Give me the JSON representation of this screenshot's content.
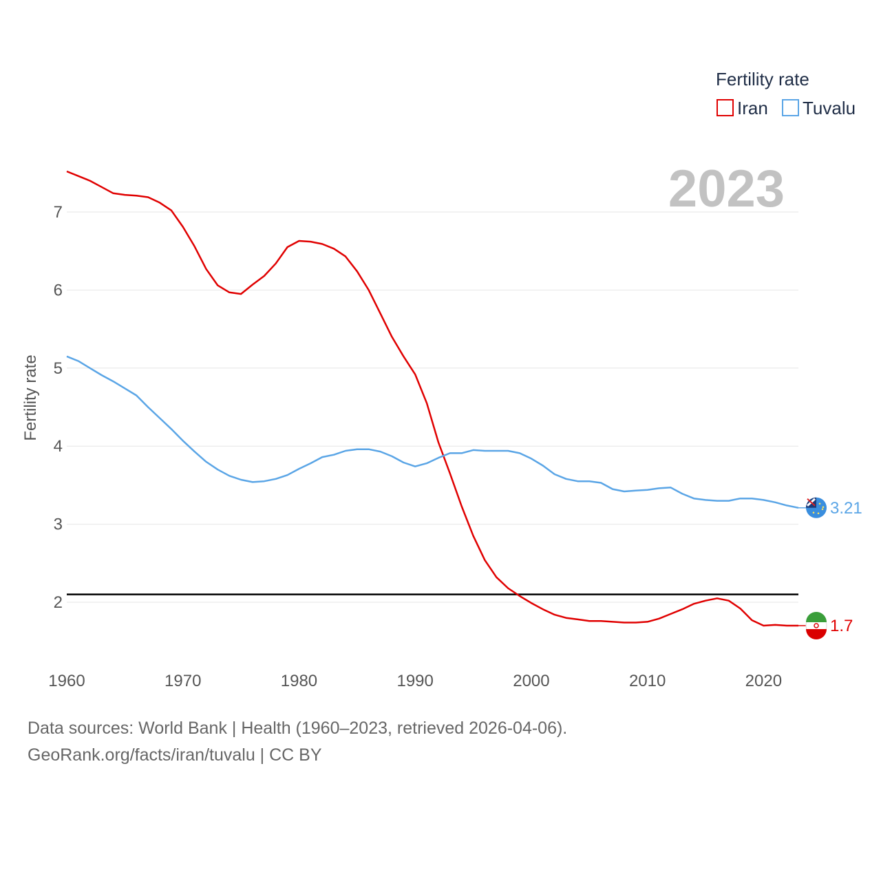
{
  "chart_data": {
    "type": "line",
    "ylabel": "Fertility rate",
    "xlabel": "",
    "xlim": [
      1960,
      2023
    ],
    "ylim": [
      1.3,
      7.5
    ],
    "yticks": [
      "2",
      "3",
      "4",
      "5",
      "6",
      "7"
    ],
    "xticks": [
      "1960",
      "1970",
      "1980",
      "1990",
      "2000",
      "2010",
      "2020"
    ],
    "year_label": "2023",
    "legend": {
      "title": "Fertility rate",
      "position": "top-right"
    },
    "reference_line": {
      "y": 2.1,
      "color": "#000000"
    },
    "x": [
      1960,
      1961,
      1962,
      1963,
      1964,
      1965,
      1966,
      1967,
      1968,
      1969,
      1970,
      1971,
      1972,
      1973,
      1974,
      1975,
      1976,
      1977,
      1978,
      1979,
      1980,
      1981,
      1982,
      1983,
      1984,
      1985,
      1986,
      1987,
      1988,
      1989,
      1990,
      1991,
      1992,
      1993,
      1994,
      1995,
      1996,
      1997,
      1998,
      1999,
      2000,
      2001,
      2002,
      2003,
      2004,
      2005,
      2006,
      2007,
      2008,
      2009,
      2010,
      2011,
      2012,
      2013,
      2014,
      2015,
      2016,
      2017,
      2018,
      2019,
      2020,
      2021,
      2022,
      2023
    ],
    "series": [
      {
        "name": "Iran",
        "color": "#e00000",
        "end_label": "1.7",
        "values": [
          7.52,
          7.46,
          7.4,
          7.32,
          7.24,
          7.22,
          7.21,
          7.19,
          7.12,
          7.02,
          6.81,
          6.56,
          6.27,
          6.06,
          5.97,
          5.95,
          6.07,
          6.18,
          6.34,
          6.55,
          6.63,
          6.62,
          6.59,
          6.53,
          6.43,
          6.24,
          6.0,
          5.7,
          5.4,
          5.15,
          4.92,
          4.55,
          4.05,
          3.65,
          3.23,
          2.85,
          2.54,
          2.32,
          2.18,
          2.08,
          1.99,
          1.91,
          1.84,
          1.8,
          1.78,
          1.76,
          1.76,
          1.75,
          1.74,
          1.74,
          1.75,
          1.79,
          1.85,
          1.91,
          1.98,
          2.02,
          2.05,
          2.02,
          1.92,
          1.77,
          1.7,
          1.71,
          1.7,
          1.7
        ]
      },
      {
        "name": "Tuvalu",
        "color": "#5aa5e6",
        "end_label": "3.21",
        "values": [
          5.15,
          5.09,
          5.0,
          4.91,
          4.83,
          4.74,
          4.65,
          4.5,
          4.36,
          4.22,
          4.07,
          3.93,
          3.8,
          3.7,
          3.62,
          3.57,
          3.54,
          3.55,
          3.58,
          3.63,
          3.71,
          3.78,
          3.86,
          3.89,
          3.94,
          3.96,
          3.96,
          3.93,
          3.87,
          3.79,
          3.74,
          3.78,
          3.85,
          3.91,
          3.91,
          3.95,
          3.94,
          3.94,
          3.94,
          3.91,
          3.84,
          3.75,
          3.64,
          3.58,
          3.55,
          3.55,
          3.53,
          3.45,
          3.42,
          3.43,
          3.44,
          3.46,
          3.47,
          3.39,
          3.33,
          3.31,
          3.3,
          3.3,
          3.33,
          3.33,
          3.31,
          3.28,
          3.24,
          3.21
        ]
      }
    ]
  },
  "source": {
    "line1": "Data sources: World Bank | Health (1960–2023, retrieved 2026-04-06).",
    "line2": "GeoRank.org/facts/iran/tuvalu | CC BY"
  }
}
